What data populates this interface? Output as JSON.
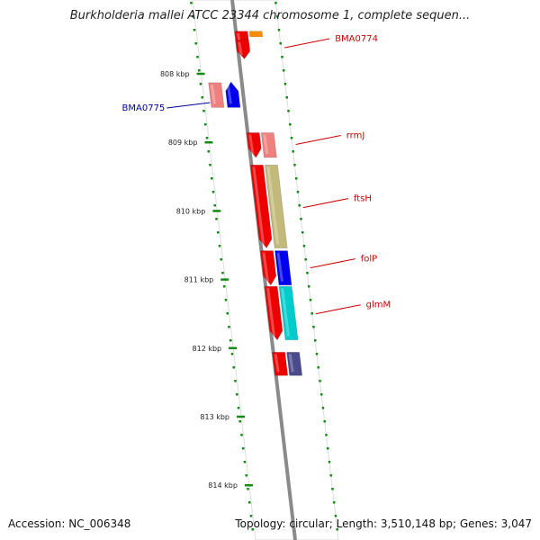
{
  "title": "Burkholderia mallei ATCC 23344 chromosome 1, complete sequen...",
  "accession": "Accession: NC_006348",
  "topology": "Topology: circular; Length: 3,510,148 bp; Genes: 3,047",
  "colors": {
    "backbone": "#8a8a8a",
    "tick": "#138a13",
    "label_forward": "#cc0000",
    "label_reverse": "#000099"
  },
  "ticks": [
    {
      "label": "808 kbp",
      "kbp": 808
    },
    {
      "label": "809 kbp",
      "kbp": 809
    },
    {
      "label": "810 kbp",
      "kbp": 810
    },
    {
      "label": "811 kbp",
      "kbp": 811
    },
    {
      "label": "812 kbp",
      "kbp": 812
    },
    {
      "label": "813 kbp",
      "kbp": 813
    },
    {
      "label": "814 kbp",
      "kbp": 814
    }
  ],
  "features": [
    {
      "name": "gene-top-red",
      "lane": "inner",
      "start": 807.38,
      "end": 807.78,
      "color": "#ee0000",
      "arrow": "down"
    },
    {
      "name": "gene-top-orange",
      "lane": "outer",
      "start": 807.38,
      "end": 807.46,
      "color": "#ff8c00",
      "arrow": "none"
    },
    {
      "name": "gene-bma0774",
      "lane": "inner",
      "start": 807.51,
      "end": 807.78,
      "color": "#ee0000",
      "arrow": "down"
    },
    {
      "name": "gene-bma0775-pink",
      "lane": "left1",
      "start": 808.13,
      "end": 808.49,
      "color": "#f08080",
      "arrow": "none"
    },
    {
      "name": "gene-bma0775-blue",
      "lane": "left2",
      "start": 808.12,
      "end": 808.49,
      "color": "#0000ee",
      "arrow": "up"
    },
    {
      "name": "gene-rrmj-red",
      "lane": "inner",
      "start": 808.86,
      "end": 809.22,
      "color": "#ee0000",
      "arrow": "down"
    },
    {
      "name": "gene-rrmj-pink",
      "lane": "outer",
      "start": 808.86,
      "end": 809.22,
      "color": "#f08080",
      "arrow": "none"
    },
    {
      "name": "gene-ftsh-red",
      "lane": "inner",
      "start": 809.33,
      "end": 810.54,
      "color": "#ee0000",
      "arrow": "down"
    },
    {
      "name": "gene-ftsh-olive",
      "lane": "outer",
      "start": 809.33,
      "end": 810.54,
      "color": "#c2b97a",
      "arrow": "none"
    },
    {
      "name": "gene-folp-red",
      "lane": "inner",
      "start": 810.58,
      "end": 811.08,
      "color": "#ee0000",
      "arrow": "down"
    },
    {
      "name": "gene-folp-blue",
      "lane": "outer",
      "start": 810.58,
      "end": 811.08,
      "color": "#0000ee",
      "arrow": "none"
    },
    {
      "name": "gene-glmm-red",
      "lane": "inner",
      "start": 811.1,
      "end": 811.88,
      "color": "#ee0000",
      "arrow": "down"
    },
    {
      "name": "gene-glmm-cyan",
      "lane": "outer",
      "start": 811.1,
      "end": 811.88,
      "color": "#00cccc",
      "arrow": "none"
    },
    {
      "name": "gene-bottom-red",
      "lane": "inner",
      "start": 812.06,
      "end": 812.4,
      "color": "#ee0000",
      "arrow": "none"
    },
    {
      "name": "gene-bottom-navy",
      "lane": "outer",
      "start": 812.06,
      "end": 812.4,
      "color": "#4a4a8c",
      "arrow": "none"
    }
  ],
  "labels": [
    {
      "text": "BMA0774",
      "side": "right",
      "kbp": 807.62,
      "color": "#cc0000"
    },
    {
      "text": "BMA0775",
      "side": "left",
      "kbp": 808.42,
      "color": "#000099"
    },
    {
      "text": "rrmJ",
      "side": "right",
      "kbp": 809.03,
      "color": "#cc0000"
    },
    {
      "text": "ftsH",
      "side": "right",
      "kbp": 809.95,
      "color": "#cc0000"
    },
    {
      "text": "folP",
      "side": "right",
      "kbp": 810.83,
      "color": "#cc0000"
    },
    {
      "text": "glmM",
      "side": "right",
      "kbp": 811.5,
      "color": "#cc0000"
    }
  ]
}
